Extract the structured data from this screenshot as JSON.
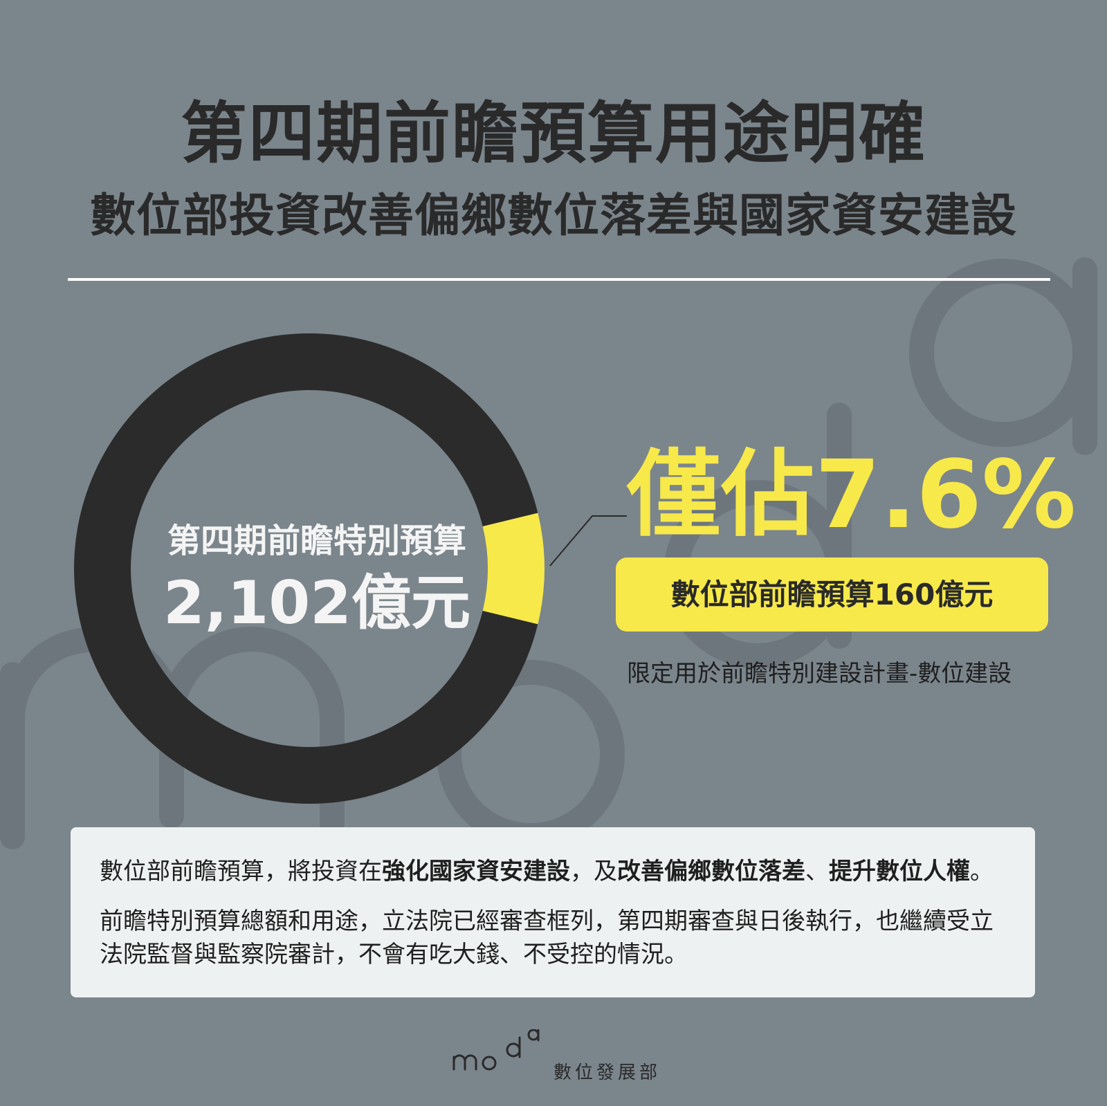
{
  "header": {
    "title": "第四期前瞻預算用途明確",
    "subtitle": "數位部投資改善偏鄉數位落差與國家資安建設"
  },
  "colors": {
    "background": "#7b858c",
    "ring": "#2b2b2b",
    "accent": "#f7e94a",
    "text_dark": "#2a2a2a",
    "text_light": "#f4f4f4",
    "panel": "#eef1f2",
    "bg_letters": "#6d767d"
  },
  "chart_data": {
    "type": "pie",
    "style": "donut",
    "slices": [
      {
        "value": 92.4,
        "color": "#2b2b2b"
      },
      {
        "value": 7.6,
        "color": "#f7e94a"
      }
    ],
    "center_label": "第四期前瞻特別預算",
    "center_value": "2,102億元",
    "callout": {
      "percent_label": "僅佔7.6%",
      "amount_label": "數位部前瞻預算160億元",
      "note": "限定用於前瞻特別建設計畫-數位建設"
    }
  },
  "info": {
    "p1_a": "數位部前瞻預算，將投資在",
    "p1_b": "強化國家資安建設",
    "p1_c": "，及",
    "p1_d": "改善偏鄉數位落差",
    "p1_e": "、",
    "p1_f": "提升數位人權",
    "p1_g": "。",
    "p2": "前瞻特別預算總額和用途，立法院已經審查框列，第四期審查與日後執行，也繼續受立法院監督與監察院審計，不會有吃大錢、不受控的情況。"
  },
  "logo": {
    "org_name": "數位發展部"
  }
}
